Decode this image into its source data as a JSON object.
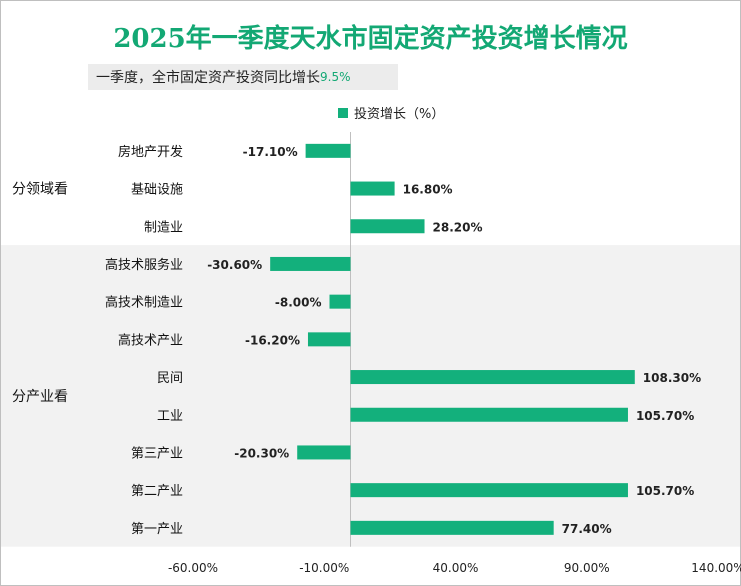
{
  "title": "2025年一季度天水市固定资产投资增长情况",
  "subtitle_text": "一季度，全市固定资产投资同比增长",
  "subtitle_value": "9.5%",
  "colors": {
    "bar": "#13b07c",
    "title": "#13a874",
    "band": "#f2f2f2",
    "subtitle_bg": "#ececec"
  },
  "chart_data": {
    "type": "bar",
    "orientation": "horizontal",
    "legend": {
      "label": "投资增长（%）",
      "position": "top"
    },
    "groups": [
      {
        "label": "分领域看",
        "categories": [
          "房地产开发",
          "基础设施",
          "制造业"
        ]
      },
      {
        "label": "分产业看",
        "categories": [
          "高技术服务业",
          "高技术制造业",
          "高技术产业",
          "民间",
          "工业",
          "第三产业",
          "第二产业",
          "第一产业"
        ]
      }
    ],
    "categories": [
      "房地产开发",
      "基础设施",
      "制造业",
      "高技术服务业",
      "高技术制造业",
      "高技术产业",
      "民间",
      "工业",
      "第三产业",
      "第二产业",
      "第一产业"
    ],
    "values": [
      -17.1,
      16.8,
      28.2,
      -30.6,
      -8.0,
      -16.2,
      108.3,
      105.7,
      -20.3,
      105.7,
      77.4
    ],
    "value_labels": [
      "-17.10%",
      "16.80%",
      "28.20%",
      "-30.60%",
      "-8.00%",
      "-16.20%",
      "108.30%",
      "105.70%",
      "-20.30%",
      "105.70%",
      "77.40%"
    ],
    "x_ticks": [
      "-60.00%",
      "-10.00%",
      "40.00%",
      "90.00%",
      "140.00%"
    ],
    "x_tick_values": [
      -60,
      -10,
      40,
      90,
      140
    ],
    "xlim": [
      -60,
      140
    ],
    "grid": false
  }
}
